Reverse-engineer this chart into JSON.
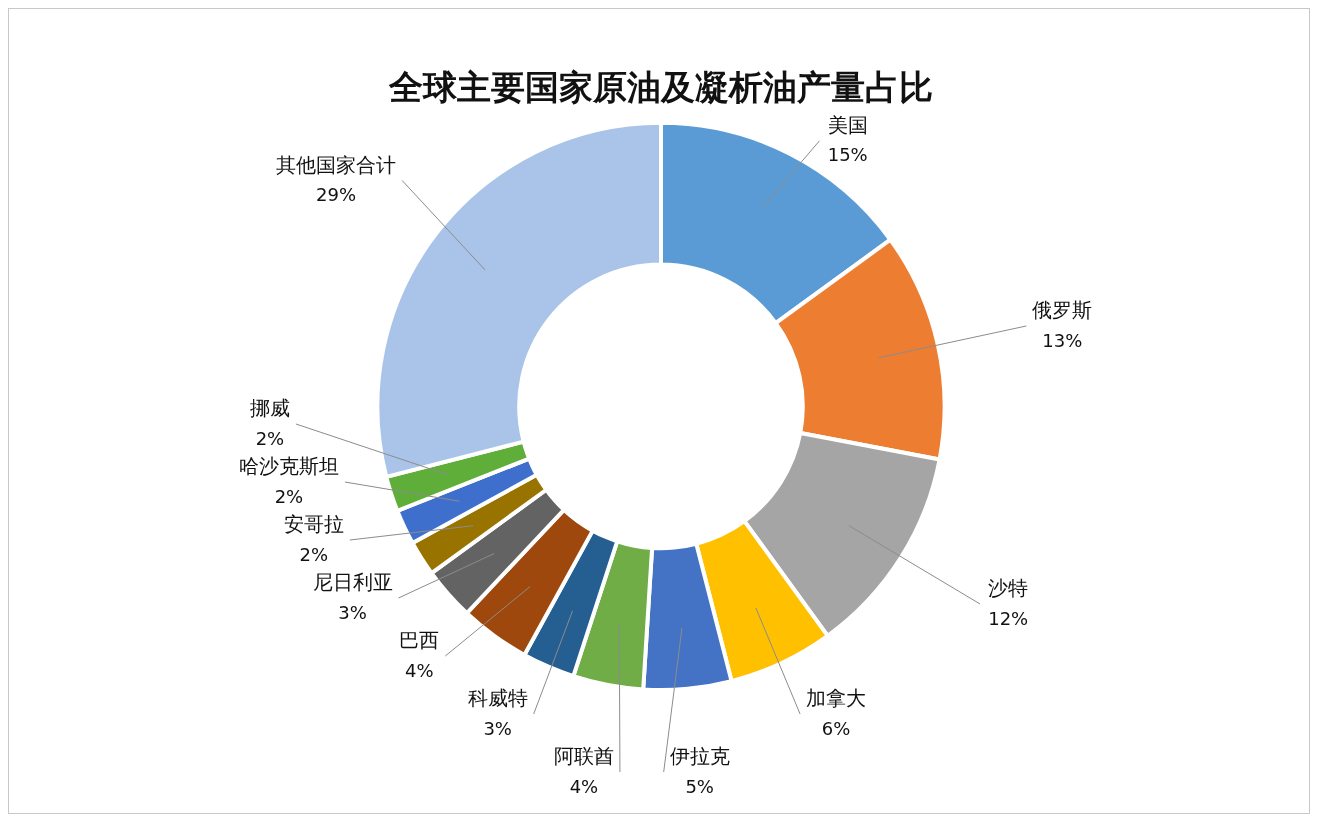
{
  "chart_data": {
    "type": "donut",
    "title": "全球主要国家原油及凝析油产量占比",
    "categories": [
      "美国",
      "俄罗斯",
      "沙特",
      "加拿大",
      "伊拉克",
      "阿联酋",
      "科威特",
      "巴西",
      "尼日利亚",
      "安哥拉",
      "哈沙克斯坦",
      "挪威",
      "其他国家合计"
    ],
    "values": [
      15,
      13,
      12,
      6,
      5,
      4,
      3,
      4,
      3,
      2,
      2,
      2,
      29
    ],
    "value_labels": [
      "15%",
      "13%",
      "12%",
      "6%",
      "5%",
      "4%",
      "3%",
      "4%",
      "3%",
      "2%",
      "2%",
      "2%",
      "29%"
    ],
    "colors": [
      "#5b9bd5",
      "#ed7d31",
      "#a5a5a5",
      "#ffc000",
      "#4472c4",
      "#70ad47",
      "#255e91",
      "#9e480e",
      "#636363",
      "#997300",
      "#3f6fcc",
      "#5fae3a",
      "#a9c4e8"
    ]
  }
}
